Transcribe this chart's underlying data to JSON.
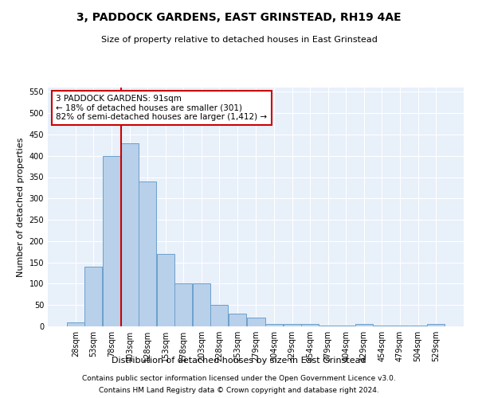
{
  "title": "3, PADDOCK GARDENS, EAST GRINSTEAD, RH19 4AE",
  "subtitle": "Size of property relative to detached houses in East Grinstead",
  "xlabel": "Distribution of detached houses by size in East Grinstead",
  "ylabel": "Number of detached properties",
  "bins": [
    28,
    53,
    78,
    103,
    128,
    153,
    178,
    203,
    228,
    253,
    279,
    304,
    329,
    354,
    379,
    404,
    429,
    454,
    479,
    504,
    529
  ],
  "heights": [
    10,
    140,
    400,
    430,
    340,
    170,
    100,
    100,
    50,
    30,
    20,
    5,
    5,
    5,
    2,
    2,
    5,
    2,
    2,
    2,
    5
  ],
  "bar_color": "#b8d0ea",
  "bar_edge_color": "#6ca0cc",
  "property_line_x": 91,
  "property_line_color": "#cc0000",
  "annotation_text": "3 PADDOCK GARDENS: 91sqm\n← 18% of detached houses are smaller (301)\n82% of semi-detached houses are larger (1,412) →",
  "annotation_box_color": "#ffffff",
  "annotation_box_edge_color": "#cc0000",
  "ylim": [
    0,
    560
  ],
  "yticks": [
    0,
    50,
    100,
    150,
    200,
    250,
    300,
    350,
    400,
    450,
    500,
    550
  ],
  "background_color": "#e8f0fa",
  "footnote1": "Contains HM Land Registry data © Crown copyright and database right 2024.",
  "footnote2": "Contains public sector information licensed under the Open Government Licence v3.0.",
  "bin_width": 25,
  "title_fontsize": 10,
  "subtitle_fontsize": 8,
  "ylabel_fontsize": 8,
  "xlabel_fontsize": 8,
  "tick_fontsize": 7,
  "footnote_fontsize": 6.5
}
